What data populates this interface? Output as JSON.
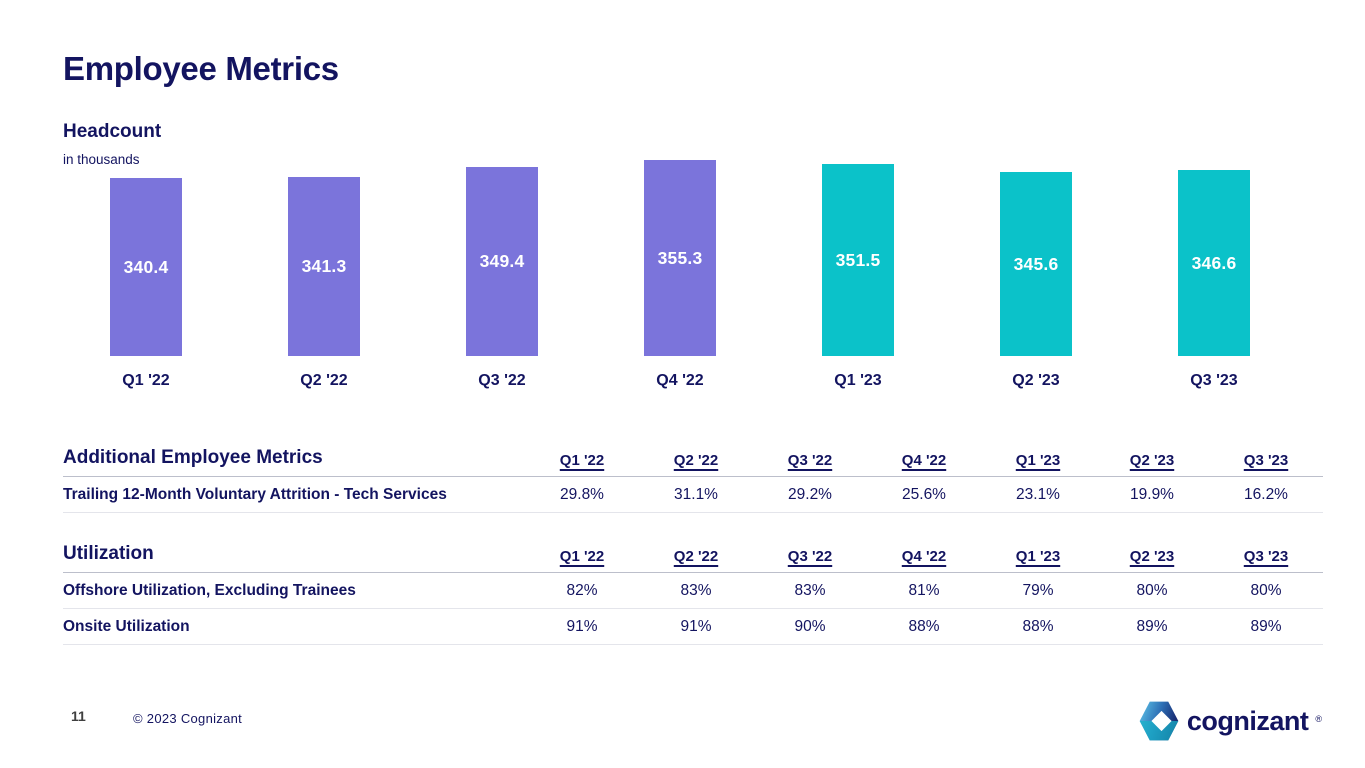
{
  "slide": {
    "title": "Employee Metrics",
    "page_number": "11",
    "copyright": "© 2023 Cognizant",
    "logo_text": "cognizant",
    "logo_reg": "®"
  },
  "colors": {
    "navy": "#131460",
    "purple": "#7b74db",
    "teal": "#0bc2c9",
    "header_rule": "#bcbfcb",
    "row_rule": "#e4e5eb",
    "bar_label": "#ffffff"
  },
  "chart_data": {
    "type": "bar",
    "title": "Headcount",
    "subtitle": "in thousands",
    "xlabel": "",
    "ylabel": "in thousands",
    "categories": [
      "Q1 '22",
      "Q2 '22",
      "Q3 '22",
      "Q4 '22",
      "Q1 '23",
      "Q2 '23",
      "Q3 '23"
    ],
    "values": [
      340.4,
      341.3,
      349.4,
      355.3,
      351.5,
      345.6,
      346.6
    ],
    "bar_colors": [
      "#7b74db",
      "#7b74db",
      "#7b74db",
      "#7b74db",
      "#0bc2c9",
      "#0bc2c9",
      "#0bc2c9"
    ],
    "ylim": [
      193,
      356
    ],
    "grid": false,
    "legend": "none",
    "data_labels": "inside-center"
  },
  "tables": [
    {
      "title": "Additional Employee Metrics",
      "columns": [
        "Q1 '22",
        "Q2 '22",
        "Q3 '22",
        "Q4 '22",
        "Q1 '23",
        "Q2 '23",
        "Q3 '23"
      ],
      "rows": [
        {
          "label": "Trailing 12-Month Voluntary Attrition - Tech Services",
          "values": [
            "29.8%",
            "31.1%",
            "29.2%",
            "25.6%",
            "23.1%",
            "19.9%",
            "16.2%"
          ]
        }
      ]
    },
    {
      "title": "Utilization",
      "columns": [
        "Q1 '22",
        "Q2 '22",
        "Q3 '22",
        "Q4 '22",
        "Q1 '23",
        "Q2 '23",
        "Q3 '23"
      ],
      "rows": [
        {
          "label": "Offshore Utilization, Excluding Trainees",
          "values": [
            "82%",
            "83%",
            "83%",
            "81%",
            "79%",
            "80%",
            "80%"
          ]
        },
        {
          "label": "Onsite Utilization",
          "values": [
            "91%",
            "91%",
            "90%",
            "88%",
            "88%",
            "89%",
            "89%"
          ]
        }
      ]
    }
  ]
}
